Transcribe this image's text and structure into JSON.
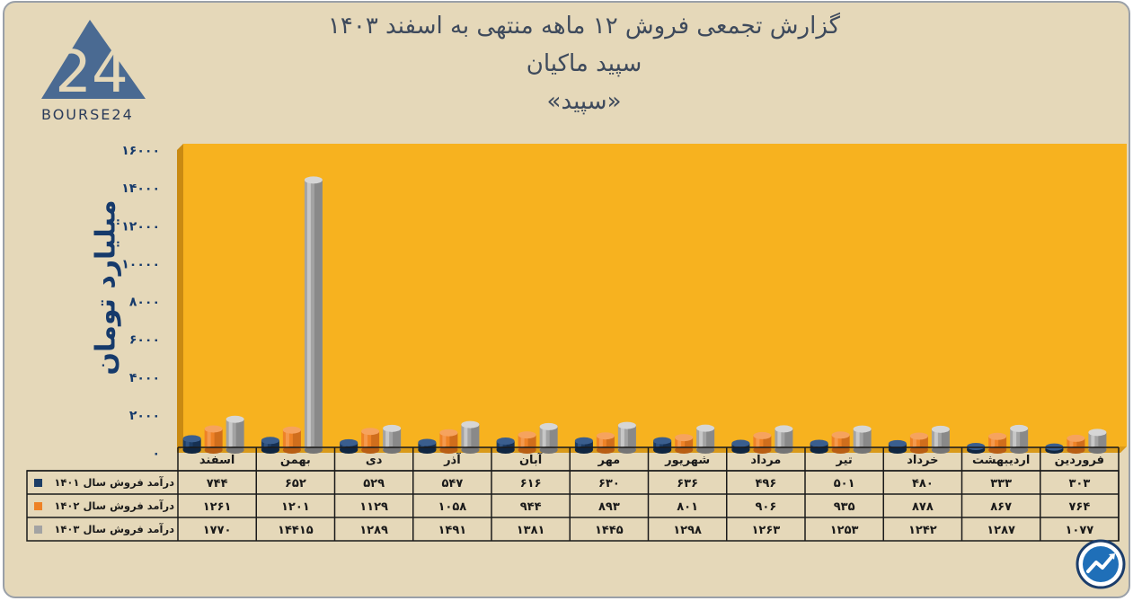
{
  "header": {
    "title_line1": "گزارش تجمعی فروش ۱۲ ماهه منتهی به اسفند ۱۴۰۳",
    "title_line2": "سپید ماکیان",
    "title_line3": "«سپید»"
  },
  "logo": {
    "mark": "24",
    "text": "BOURSE24",
    "icon": "bourse24-logo"
  },
  "corner_badge": {
    "icon": "trend-chart-icon"
  },
  "colors": {
    "plot_background": "#f7b21f",
    "series_1401": "#1d3d66",
    "series_1402": "#ee8226",
    "series_1403": "#a3a3a3",
    "text_dark": "#163a6b"
  },
  "chart_data": {
    "type": "bar",
    "ylabel": "میلیارد تومان",
    "ylim": [
      0,
      16000
    ],
    "yticks": [
      "۰",
      "۲۰۰۰",
      "۴۰۰۰",
      "۶۰۰۰",
      "۸۰۰۰",
      "۱۰۰۰۰",
      "۱۲۰۰۰",
      "۱۴۰۰۰",
      "۱۶۰۰۰"
    ],
    "ytick_values": [
      0,
      2000,
      4000,
      6000,
      8000,
      10000,
      12000,
      14000,
      16000
    ],
    "categories": [
      "فروردین",
      "اردیبهشت",
      "خرداد",
      "تیر",
      "مرداد",
      "شهریور",
      "مهر",
      "آبان",
      "آذر",
      "دی",
      "بهمن",
      "اسفند"
    ],
    "series": [
      {
        "name": "درآمد فروش سال ۱۴۰۱",
        "values": [
          303,
          333,
          480,
          501,
          496,
          636,
          630,
          616,
          547,
          529,
          652,
          744
        ],
        "labels": [
          "۳۰۳",
          "۳۳۳",
          "۴۸۰",
          "۵۰۱",
          "۴۹۶",
          "۶۳۶",
          "۶۳۰",
          "۶۱۶",
          "۵۴۷",
          "۵۲۹",
          "۶۵۲",
          "۷۴۴"
        ]
      },
      {
        "name": "درآمد فروش سال ۱۴۰۲",
        "values": [
          764,
          867,
          878,
          935,
          906,
          801,
          893,
          944,
          1058,
          1129,
          1201,
          1261
        ],
        "labels": [
          "۷۶۴",
          "۸۶۷",
          "۸۷۸",
          "۹۳۵",
          "۹۰۶",
          "۸۰۱",
          "۸۹۳",
          "۹۴۴",
          "۱۰۵۸",
          "۱۱۲۹",
          "۱۲۰۱",
          "۱۲۶۱"
        ]
      },
      {
        "name": "درآمد فروش سال ۱۴۰۳",
        "values": [
          1077,
          1287,
          1242,
          1253,
          1263,
          1298,
          1445,
          1381,
          1491,
          1289,
          14415,
          1770
        ],
        "labels": [
          "۱۰۷۷",
          "۱۲۸۷",
          "۱۲۴۲",
          "۱۲۵۳",
          "۱۲۶۳",
          "۱۲۹۸",
          "۱۴۴۵",
          "۱۳۸۱",
          "۱۴۹۱",
          "۱۲۸۹",
          "۱۴۴۱۵",
          "۱۷۷۰"
        ]
      }
    ],
    "grid": false,
    "legend": "data-table"
  }
}
